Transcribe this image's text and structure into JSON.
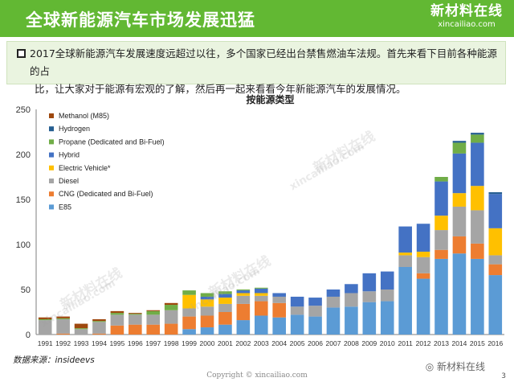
{
  "header": {
    "title": "全球新能源汽车市场发展迅猛",
    "logo_main": "新材料在线",
    "logo_sub": "xincailiao.com"
  },
  "intro": {
    "line1": "2017全球新能源汽车发展速度远超过以往，多个国家已经出台禁售燃油车法规。首先来看下目前各种能源的占",
    "line2": "比，让大家对于能源有宏观的了解，然后再一起来看看今年新能源汽车的发展情况。"
  },
  "watermark": {
    "cn": "新材料在线",
    "en": "xincailiao.com"
  },
  "footer": {
    "source": "数据来源：insideevs",
    "copyright": "Copyright © xincailiao.com",
    "wechat": "新材料在线",
    "page_number": "3"
  },
  "chart_data": {
    "type": "bar",
    "stacked": true,
    "title": "按能源类型",
    "ylim": [
      0,
      250
    ],
    "yticks": [
      0,
      50,
      100,
      150,
      200,
      250
    ],
    "legend_position": "top-left",
    "categories": [
      "1991",
      "1992",
      "1993",
      "1994",
      "1995",
      "1996",
      "1997",
      "1998",
      "1999",
      "2000",
      "2001",
      "2002",
      "2003",
      "2004",
      "2005",
      "2006",
      "2007",
      "2008",
      "2009",
      "2010",
      "2011",
      "2012",
      "2013",
      "2014",
      "2015",
      "2016"
    ],
    "series": [
      {
        "name": "E85",
        "color": "#5b9bd5",
        "values": [
          0,
          0,
          0,
          0,
          0,
          0,
          0,
          0,
          6,
          8,
          11,
          16,
          21,
          19,
          22,
          20,
          30,
          31,
          36,
          37,
          75,
          62,
          84,
          90,
          84,
          66
        ]
      },
      {
        "name": "CNG (Dedicated and Bi-Fuel)",
        "color": "#ed7d31",
        "values": [
          0,
          1,
          0,
          1,
          10,
          11,
          11,
          12,
          14,
          13,
          14,
          18,
          16,
          16,
          0,
          0,
          0,
          0,
          0,
          0,
          0,
          6,
          10,
          19,
          17,
          12
        ]
      },
      {
        "name": "Diesel",
        "color": "#a5a5a5",
        "values": [
          16,
          16,
          6,
          13,
          12,
          11,
          11,
          15,
          9,
          10,
          9,
          9,
          6,
          7,
          9,
          12,
          12,
          15,
          12,
          13,
          13,
          18,
          22,
          33,
          37,
          10
        ]
      },
      {
        "name": "Electric Vehicle*",
        "color": "#ffc000",
        "values": [
          0,
          0,
          0,
          0,
          0,
          0,
          0,
          0,
          15,
          8,
          7,
          3,
          3,
          0,
          0,
          0,
          0,
          0,
          0,
          0,
          3,
          6,
          16,
          15,
          27,
          30
        ]
      },
      {
        "name": "Hybrid",
        "color": "#4472c4",
        "values": [
          0,
          0,
          0,
          0,
          0,
          0,
          0,
          0,
          0,
          3,
          4,
          3,
          5,
          4,
          11,
          9,
          8,
          10,
          20,
          20,
          29,
          31,
          38,
          44,
          48,
          38
        ]
      },
      {
        "name": "Propane (Dedicated and Bi-Fuel)",
        "color": "#70ad47",
        "values": [
          1,
          1,
          1,
          1,
          2,
          1,
          4,
          6,
          5,
          4,
          3,
          1,
          1,
          0,
          0,
          0,
          0,
          0,
          0,
          0,
          0,
          0,
          5,
          12,
          9,
          0
        ]
      },
      {
        "name": "Hydrogen",
        "color": "#255e91",
        "values": [
          0,
          0,
          0,
          0,
          0,
          0,
          0,
          0,
          0,
          0,
          0,
          0,
          0,
          0,
          0,
          0,
          0,
          0,
          0,
          0,
          0,
          0,
          0,
          2,
          2,
          2
        ]
      },
      {
        "name": "Methanol (M85)",
        "color": "#9e480e",
        "values": [
          2,
          2,
          5,
          2,
          2,
          1,
          1,
          2,
          0,
          0,
          0,
          0,
          0,
          0,
          0,
          0,
          0,
          0,
          0,
          0,
          0,
          0,
          0,
          0,
          0,
          0
        ]
      }
    ]
  }
}
